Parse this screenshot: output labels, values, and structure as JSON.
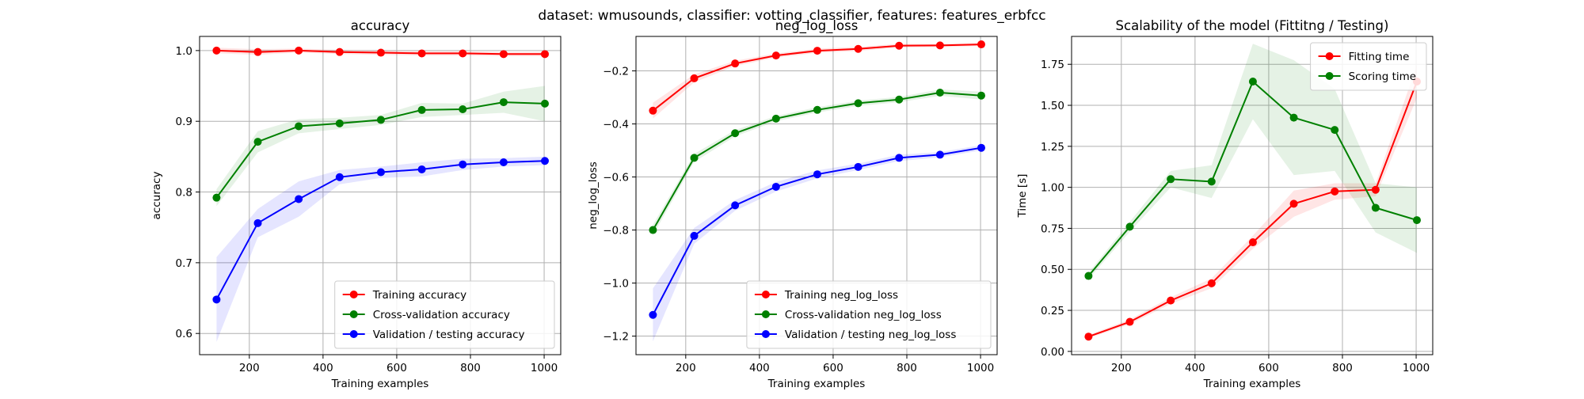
{
  "suptitle": "dataset: wmusounds, classifier: votting_classifier, features: features_erbfcc",
  "colors": {
    "train": "#ff0000",
    "cv": "#008000",
    "val": "#0000ff"
  },
  "chart_data": [
    {
      "type": "line",
      "title": "accuracy",
      "xlabel": "Training examples",
      "ylabel": "accuracy",
      "xlim": [
        65,
        1045
      ],
      "ylim": [
        0.57,
        1.02
      ],
      "xticks": [
        200,
        400,
        600,
        800,
        1000
      ],
      "xtick_labels": [
        "200",
        "400",
        "600",
        "800",
        "1000"
      ],
      "yticks": [
        0.6,
        0.7,
        0.8,
        0.9,
        1.0
      ],
      "ytick_labels": [
        "0.6",
        "0.7",
        "0.8",
        "0.9",
        "1.0"
      ],
      "grid": true,
      "legend_position": "lower-right",
      "x": [
        111,
        223,
        334,
        445,
        557,
        668,
        779,
        890,
        1002
      ],
      "series": [
        {
          "name": "Training accuracy",
          "color": "#ff0000",
          "values": [
            1.0,
            0.998,
            1.0,
            0.998,
            0.997,
            0.996,
            0.996,
            0.995,
            0.995
          ],
          "band": [
            0.004,
            0.004,
            0.003,
            0.003,
            0.003,
            0.003,
            0.003,
            0.003,
            0.003
          ]
        },
        {
          "name": "Cross-validation accuracy",
          "color": "#008000",
          "values": [
            0.792,
            0.871,
            0.893,
            0.897,
            0.902,
            0.916,
            0.917,
            0.927,
            0.925
          ],
          "band": [
            0.012,
            0.015,
            0.01,
            0.008,
            0.007,
            0.01,
            0.008,
            0.015,
            0.025
          ]
        },
        {
          "name": "Validation / testing accuracy",
          "color": "#0000ff",
          "values": [
            0.648,
            0.756,
            0.79,
            0.821,
            0.828,
            0.832,
            0.839,
            0.842,
            0.844
          ],
          "band": [
            0.06,
            0.02,
            0.025,
            0.01,
            0.008,
            0.01,
            0.008,
            0.006,
            0.006
          ]
        }
      ]
    },
    {
      "type": "line",
      "title": "neg_log_loss",
      "xlabel": "Training examples",
      "ylabel": "neg_log_loss",
      "xlim": [
        65,
        1045
      ],
      "ylim": [
        -1.27,
        -0.07
      ],
      "xticks": [
        200,
        400,
        600,
        800,
        1000
      ],
      "xtick_labels": [
        "200",
        "400",
        "600",
        "800",
        "1000"
      ],
      "yticks": [
        -1.2,
        -1.0,
        -0.8,
        -0.6,
        -0.4,
        -0.2
      ],
      "ytick_labels": [
        "−1.2",
        "−1.0",
        "−0.8",
        "−0.6",
        "−0.4",
        "−0.2"
      ],
      "grid": true,
      "legend_position": "lower-right",
      "x": [
        111,
        223,
        334,
        445,
        557,
        668,
        779,
        890,
        1002
      ],
      "series": [
        {
          "name": "Training neg_log_loss",
          "color": "#ff0000",
          "values": [
            -0.35,
            -0.228,
            -0.172,
            -0.142,
            -0.124,
            -0.117,
            -0.105,
            -0.104,
            -0.1
          ],
          "band": [
            0.03,
            0.015,
            0.01,
            0.008,
            0.008,
            0.008,
            0.007,
            0.006,
            0.006
          ]
        },
        {
          "name": "Cross-validation neg_log_loss",
          "color": "#008000",
          "values": [
            -0.8,
            -0.528,
            -0.435,
            -0.38,
            -0.347,
            -0.322,
            -0.308,
            -0.282,
            -0.293
          ],
          "band": [
            0.02,
            0.015,
            0.012,
            0.01,
            0.01,
            0.01,
            0.01,
            0.012,
            0.015
          ]
        },
        {
          "name": "Validation / testing neg_log_loss",
          "color": "#0000ff",
          "values": [
            -1.12,
            -0.822,
            -0.707,
            -0.637,
            -0.59,
            -0.562,
            -0.528,
            -0.516,
            -0.49
          ],
          "band": [
            0.1,
            0.03,
            0.02,
            0.018,
            0.015,
            0.012,
            0.012,
            0.01,
            0.01
          ]
        }
      ]
    },
    {
      "type": "line",
      "title": "Scalability of the model (Fittitng / Testing)",
      "xlabel": "Training examples",
      "ylabel": "Time [s]",
      "xlim": [
        65,
        1045
      ],
      "ylim": [
        -0.02,
        1.92
      ],
      "xticks": [
        200,
        400,
        600,
        800,
        1000
      ],
      "xtick_labels": [
        "200",
        "400",
        "600",
        "800",
        "1000"
      ],
      "yticks": [
        0.0,
        0.25,
        0.5,
        0.75,
        1.0,
        1.25,
        1.5,
        1.75
      ],
      "ytick_labels": [
        "0.00",
        "0.25",
        "0.50",
        "0.75",
        "1.00",
        "1.25",
        "1.50",
        "1.75"
      ],
      "grid": true,
      "legend_position": "upper-right",
      "x": [
        111,
        223,
        334,
        445,
        557,
        668,
        779,
        890,
        1002
      ],
      "series": [
        {
          "name": "Fitting time",
          "color": "#ff0000",
          "values": [
            0.09,
            0.18,
            0.31,
            0.415,
            0.665,
            0.9,
            0.975,
            0.985,
            1.645
          ],
          "band": [
            0.01,
            0.015,
            0.02,
            0.03,
            0.04,
            0.08,
            0.05,
            0.04,
            0.1
          ]
        },
        {
          "name": "Scoring time",
          "color": "#008000",
          "values": [
            0.46,
            0.76,
            1.05,
            1.035,
            1.645,
            1.425,
            1.35,
            0.875,
            0.8
          ],
          "band": [
            0.02,
            0.03,
            0.05,
            0.1,
            0.23,
            0.35,
            0.25,
            0.15,
            0.2
          ]
        }
      ]
    }
  ]
}
